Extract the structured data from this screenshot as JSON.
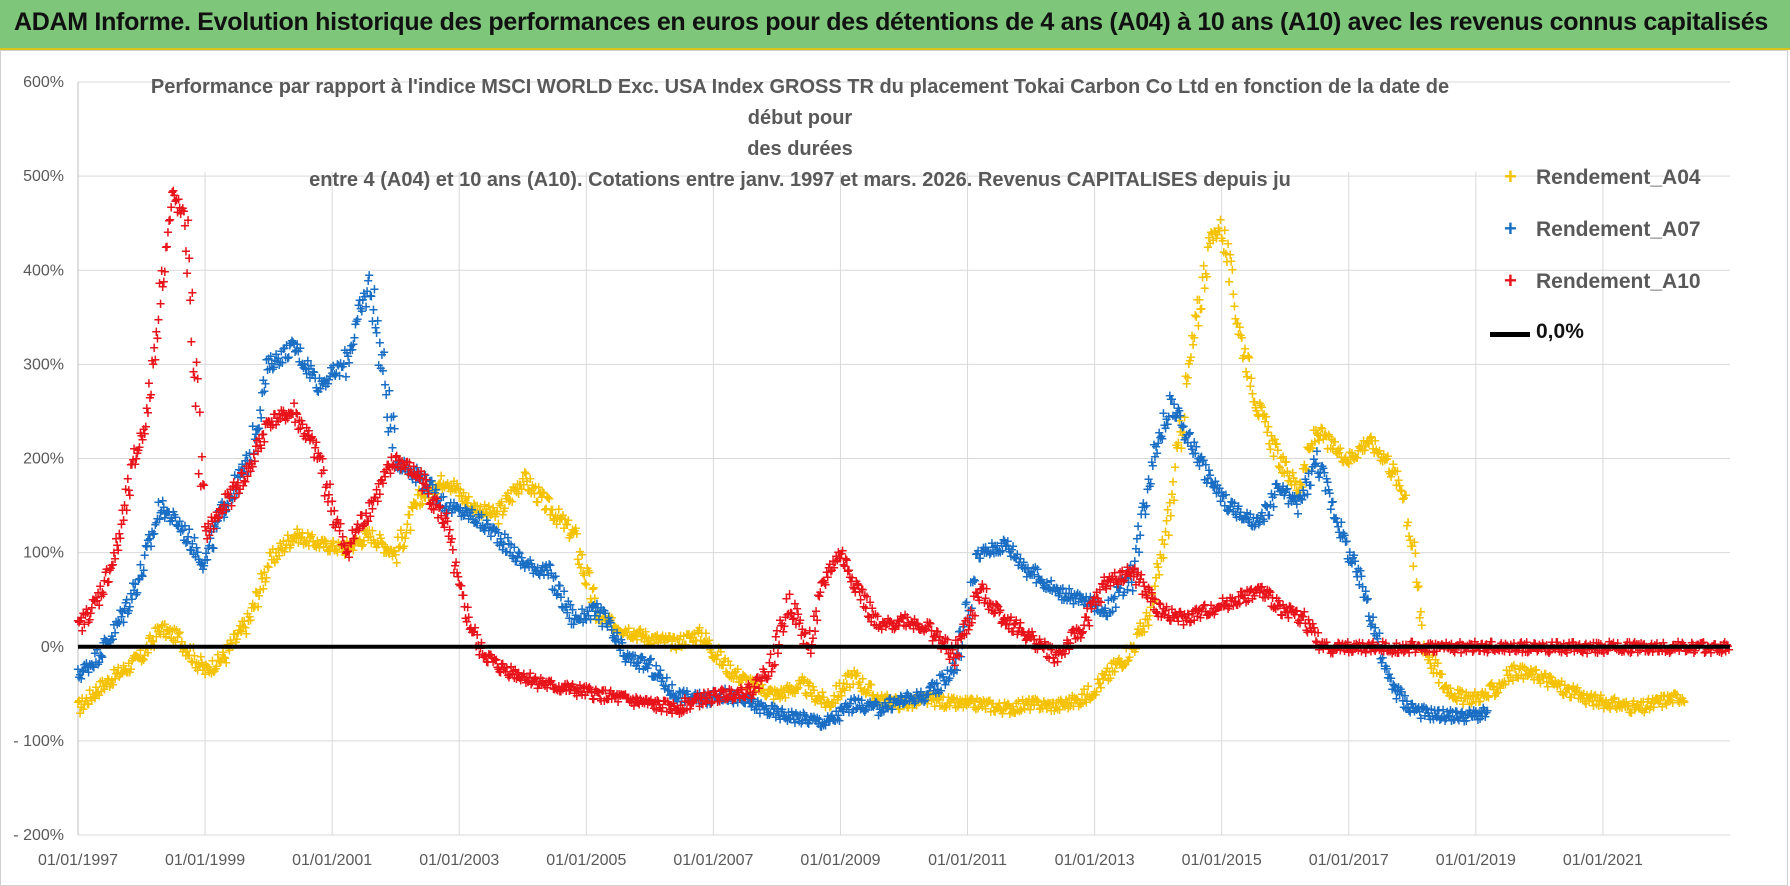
{
  "banner": {
    "title": "ADAM Informe. Evolution historique des performances en euros pour des détentions de 4 ans (A04) à 10 ans (A10) avec les revenus connus capitalisés"
  },
  "colors": {
    "banner_bg": "#7dc67a",
    "A04": "#f5c200",
    "A07": "#1a6fc4",
    "A10": "#e8141b",
    "zero_line": "#000000",
    "grid": "#d9d9d9"
  },
  "chart_data": {
    "type": "scatter",
    "title_lines": [
      "Performance par rapport à l'indice MSCI WORLD Exc. USA Index GROSS TR  du placement Tokai Carbon Co Ltd en fonction de la date de début pour",
      "des durées",
      "entre 4 (A04) et 10 ans (A10). Cotations entre janv. 1997 et mars. 2026. Revenus CAPITALISES depuis ju"
    ],
    "xlabel": "",
    "ylabel": "",
    "x_range": [
      1997.0,
      2023.0
    ],
    "x_ticks": [
      {
        "value": 1997,
        "label": "01/01/1997"
      },
      {
        "value": 1999,
        "label": "01/01/1999"
      },
      {
        "value": 2001,
        "label": "01/01/2001"
      },
      {
        "value": 2003,
        "label": "01/01/2003"
      },
      {
        "value": 2005,
        "label": "01/01/2005"
      },
      {
        "value": 2007,
        "label": "01/01/2007"
      },
      {
        "value": 2009,
        "label": "01/01/2009"
      },
      {
        "value": 2011,
        "label": "01/01/2011"
      },
      {
        "value": 2013,
        "label": "01/01/2013"
      },
      {
        "value": 2015,
        "label": "01/01/2015"
      },
      {
        "value": 2017,
        "label": "01/01/2017"
      },
      {
        "value": 2019,
        "label": "01/01/2019"
      },
      {
        "value": 2021,
        "label": "01/01/2021"
      }
    ],
    "ylim": [
      -200,
      600
    ],
    "y_ticks": [
      {
        "value": 600,
        "label": "600%"
      },
      {
        "value": 500,
        "label": "500%"
      },
      {
        "value": 400,
        "label": "400%"
      },
      {
        "value": 300,
        "label": "300%"
      },
      {
        "value": 200,
        "label": "200%"
      },
      {
        "value": 100,
        "label": "100%"
      },
      {
        "value": 0,
        "label": "0%"
      },
      {
        "value": -100,
        "label": "- 100%"
      },
      {
        "value": -200,
        "label": "- 200%"
      }
    ],
    "grid": true,
    "legend_position": "top-right",
    "series": [
      {
        "name": "Rendement_A04",
        "color": "#f5c200",
        "x": [
          1997.0,
          1997.3,
          1997.6,
          1998.0,
          1998.3,
          1998.6,
          1999.0,
          1999.3,
          1999.7,
          2000.0,
          2000.4,
          2000.8,
          2001.2,
          2001.6,
          2002.0,
          2002.4,
          2002.8,
          2003.2,
          2003.6,
          2004.0,
          2004.4,
          2004.8,
          2005.2,
          2005.6,
          2006.0,
          2006.4,
          2006.8,
          2007.2,
          2007.6,
          2008.0,
          2008.4,
          2008.8,
          2009.2,
          2009.6,
          2010.0,
          2010.4,
          2010.8,
          2011.2,
          2011.6,
          2012.0,
          2012.4,
          2012.8,
          2013.2,
          2013.6,
          2013.9,
          2014.2,
          2014.5,
          2014.8,
          2015.0,
          2015.3,
          2015.6,
          2015.9,
          2016.2,
          2016.5,
          2016.8,
          2017.0,
          2017.3,
          2017.6,
          2017.9,
          2018.2,
          2018.5,
          2018.8,
          2019.2,
          2019.6,
          2020.0,
          2020.4,
          2020.8,
          2021.2,
          2021.6,
          2022.0,
          2022.3
        ],
        "y": [
          -65,
          -45,
          -30,
          -10,
          20,
          10,
          -25,
          -10,
          30,
          90,
          120,
          110,
          105,
          120,
          100,
          160,
          180,
          150,
          140,
          180,
          150,
          120,
          30,
          20,
          10,
          5,
          15,
          -20,
          -40,
          -50,
          -40,
          -60,
          -30,
          -55,
          -60,
          -55,
          -60,
          -60,
          -65,
          -60,
          -62,
          -55,
          -30,
          0,
          40,
          150,
          300,
          430,
          450,
          330,
          250,
          200,
          170,
          230,
          210,
          200,
          220,
          200,
          160,
          0,
          -40,
          -55,
          -50,
          -25,
          -30,
          -45,
          -55,
          -60,
          -65,
          -55,
          -52
        ]
      },
      {
        "name": "Rendement_A07",
        "color": "#1a6fc4",
        "x": [
          1997.0,
          1997.3,
          1997.6,
          1998.0,
          1998.3,
          1998.6,
          1999.0,
          1999.3,
          1999.7,
          2000.0,
          2000.4,
          2000.8,
          2001.2,
          2001.6,
          2002.0,
          2002.4,
          2002.8,
          2003.2,
          2003.6,
          2004.0,
          2004.4,
          2004.8,
          2005.2,
          2005.6,
          2006.0,
          2006.4,
          2006.8,
          2007.2,
          2007.6,
          2008.0,
          2008.4,
          2008.8,
          2009.2,
          2009.6,
          2010.0,
          2010.4,
          2010.8,
          2011.2,
          2011.6,
          2012.0,
          2012.4,
          2012.8,
          2013.2,
          2013.6,
          2013.9,
          2014.2,
          2014.5,
          2014.8,
          2015.0,
          2015.3,
          2015.6,
          2015.9,
          2016.2,
          2016.5,
          2016.8,
          2017.0,
          2017.3,
          2017.6,
          2017.9,
          2018.2,
          2018.5,
          2018.8,
          2019.2
        ],
        "y": [
          -30,
          -10,
          20,
          80,
          150,
          130,
          90,
          150,
          200,
          300,
          320,
          280,
          300,
          390,
          200,
          180,
          150,
          140,
          120,
          90,
          80,
          30,
          40,
          -10,
          -20,
          -50,
          -55,
          -50,
          -60,
          -70,
          -75,
          -80,
          -60,
          -65,
          -55,
          -50,
          -20,
          100,
          110,
          80,
          60,
          50,
          40,
          80,
          200,
          260,
          220,
          180,
          160,
          140,
          130,
          170,
          150,
          200,
          140,
          100,
          50,
          -30,
          -60,
          -70,
          -72,
          -73,
          -70
        ]
      },
      {
        "name": "Rendement_A10",
        "color": "#e8141b",
        "x": [
          1997.0,
          1997.3,
          1997.6,
          1997.9,
          1998.1,
          1998.3,
          1998.5,
          1998.7,
          1999.0,
          1999.3,
          1999.7,
          2000.0,
          2000.4,
          2000.8,
          2001.2,
          2001.6,
          2002.0,
          2002.4,
          2002.8,
          2003.0,
          2003.3,
          2003.6,
          2004.0,
          2004.4,
          2004.8,
          2005.2,
          2005.6,
          2006.0,
          2006.4,
          2006.8,
          2007.2,
          2007.6,
          2007.9,
          2008.2,
          2008.5,
          2008.8,
          2009.0,
          2009.3,
          2009.6,
          2010.0,
          2010.4,
          2010.8,
          2011.2,
          2011.6,
          2012.0,
          2012.4,
          2012.8,
          2013.2,
          2013.6,
          2014.0,
          2014.4,
          2014.8,
          2015.2,
          2015.6,
          2016.0,
          2016.3,
          2016.6,
          2017.0,
          2017.5,
          2018.0,
          2018.5,
          2019.0,
          2019.5,
          2020.0,
          2020.5,
          2021.0,
          2021.5,
          2022.0,
          2022.5,
          2023.0
        ],
        "y": [
          20,
          50,
          100,
          200,
          250,
          380,
          480,
          450,
          120,
          150,
          190,
          240,
          250,
          200,
          100,
          150,
          200,
          180,
          130,
          60,
          0,
          -20,
          -30,
          -40,
          -45,
          -50,
          -55,
          -60,
          -65,
          -55,
          -50,
          -45,
          -20,
          50,
          0,
          80,
          100,
          60,
          20,
          30,
          20,
          -10,
          60,
          30,
          10,
          -10,
          20,
          70,
          80,
          40,
          30,
          40,
          50,
          60,
          40,
          30,
          0,
          0,
          0,
          0,
          0,
          0,
          0,
          0,
          0,
          0,
          0,
          0,
          0,
          0
        ]
      }
    ],
    "reference_line": {
      "label": "0,0%",
      "value": 0
    }
  },
  "legend": {
    "items": [
      {
        "label": "Rendement_A04",
        "marker": "+"
      },
      {
        "label": "Rendement_A07",
        "marker": "+"
      },
      {
        "label": "Rendement_A10",
        "marker": "+"
      },
      {
        "label": "0,0%"
      }
    ]
  }
}
